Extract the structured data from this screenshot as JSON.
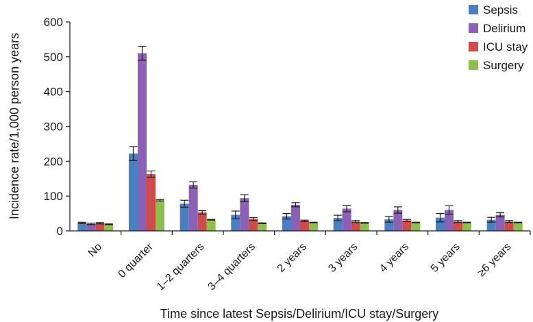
{
  "chart_data": {
    "type": "bar",
    "xlabel": "Time since latest Sepsis/Delirium/ICU stay/Surgery",
    "ylabel": "Incidence rate/1,000 person years",
    "ylim": [
      0,
      600
    ],
    "yticks": [
      "0",
      "100",
      "200",
      "300",
      "400",
      "500",
      "600"
    ],
    "categories": [
      "No",
      "0 quarter",
      "1–2 quarters",
      "3–4 quarters",
      "2 years",
      "3 years",
      "4 years",
      "5 years",
      "≥6 years"
    ],
    "error_bars": true,
    "legend_position": "top-right",
    "series": [
      {
        "name": "Sepsis",
        "color": "#4a7fc1",
        "values": [
          23,
          222,
          78,
          46,
          42,
          37,
          33,
          38,
          32
        ],
        "err": [
          2,
          20,
          10,
          11,
          8,
          8,
          8,
          12,
          7
        ]
      },
      {
        "name": "Delirium",
        "color": "#8b60b5",
        "values": [
          20,
          510,
          132,
          94,
          75,
          64,
          60,
          60,
          46
        ],
        "err": [
          2,
          20,
          9,
          10,
          6,
          9,
          9,
          12,
          6
        ]
      },
      {
        "name": "ICU stay",
        "color": "#d04a4a",
        "values": [
          22,
          163,
          53,
          34,
          29,
          27,
          30,
          27,
          27
        ],
        "err": [
          2,
          9,
          5,
          4,
          2,
          3,
          3,
          3,
          3
        ]
      },
      {
        "name": "Surgery",
        "color": "#8cbf4e",
        "values": [
          19,
          88,
          32,
          22,
          24,
          23,
          24,
          24,
          24
        ],
        "err": [
          1,
          2,
          1,
          1,
          1,
          1,
          1,
          1,
          1
        ]
      }
    ]
  }
}
